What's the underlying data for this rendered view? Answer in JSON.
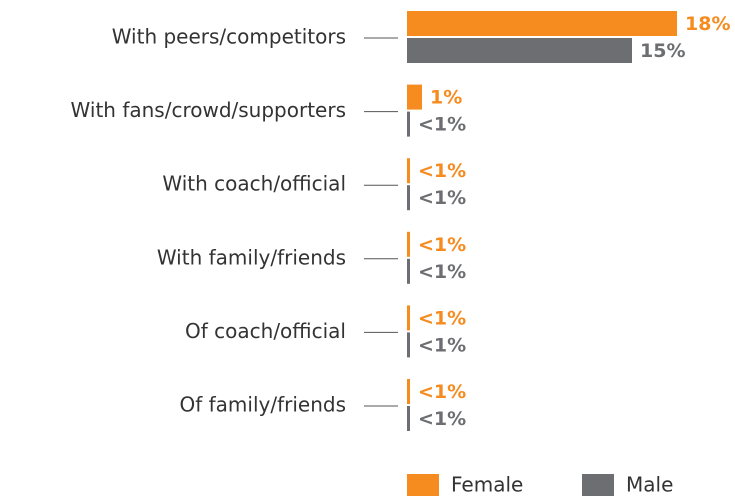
{
  "chart_data": {
    "type": "bar",
    "orientation": "horizontal",
    "categories": [
      "With peers/competitors",
      "With fans/crowd/supporters",
      "With coach/official",
      "With family/friends",
      "Of coach/official",
      "Of family/friends"
    ],
    "series": [
      {
        "name": "Female",
        "color": "#f68b1f",
        "values": [
          18,
          1,
          0.2,
          0.2,
          0.2,
          0.2
        ],
        "value_labels": [
          "18%",
          "1%",
          "<1%",
          "<1%",
          "<1%",
          "<1%"
        ]
      },
      {
        "name": "Male",
        "color": "#6d6e71",
        "values": [
          15,
          0.2,
          0.2,
          0.2,
          0.2,
          0.2
        ],
        "value_labels": [
          "15%",
          "<1%",
          "<1%",
          "<1%",
          "<1%",
          "<1%"
        ]
      }
    ],
    "legend": "bottom"
  }
}
